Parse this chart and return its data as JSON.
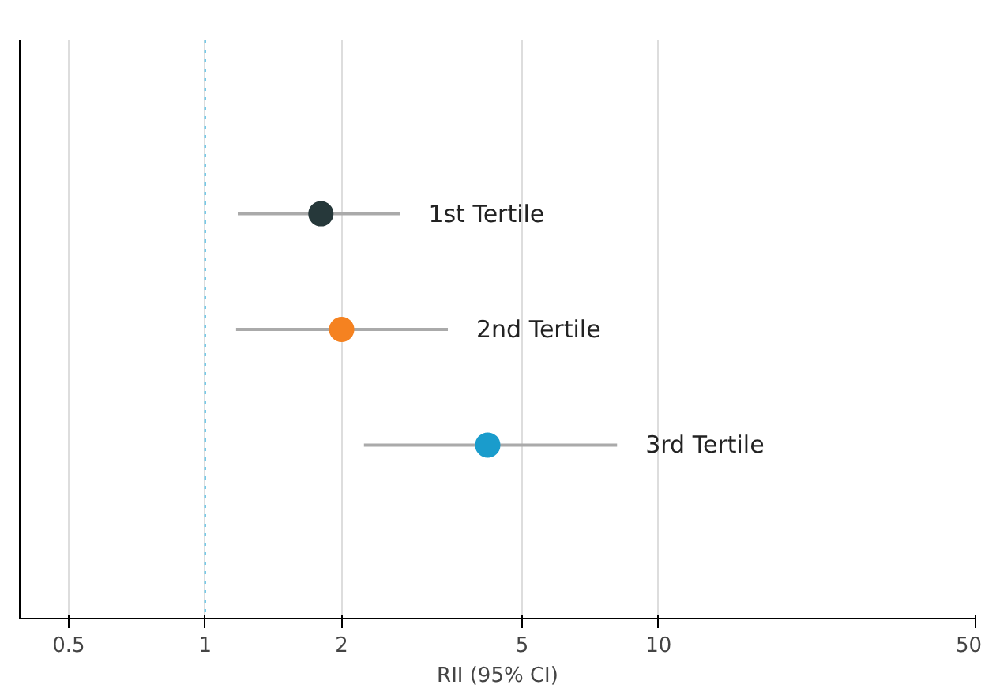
{
  "chart_data": {
    "type": "scatter",
    "orientation": "horizontal",
    "categories": [
      "1st Tertile",
      "2nd Tertile",
      "3rd Tertile"
    ],
    "values": [
      1.8,
      2.0,
      4.2
    ],
    "errors": [
      [
        1.18,
        2.69
      ],
      [
        1.17,
        3.43
      ],
      [
        2.24,
        8.1
      ]
    ],
    "colors": [
      "#26383a",
      "#f58220",
      "#1a9ccc"
    ],
    "xlabel": "RII (95% CI)",
    "log": "x",
    "xlim": [
      0.39,
      50
    ],
    "xticks": [
      0.5,
      1,
      2,
      5,
      10,
      50
    ],
    "ref_lines": [
      {
        "axis": "x",
        "value": 1,
        "color": "#6ec6e6",
        "line_style": "dotted"
      }
    ],
    "grid": "x",
    "tick_labels": "x",
    "marker": "circle"
  }
}
